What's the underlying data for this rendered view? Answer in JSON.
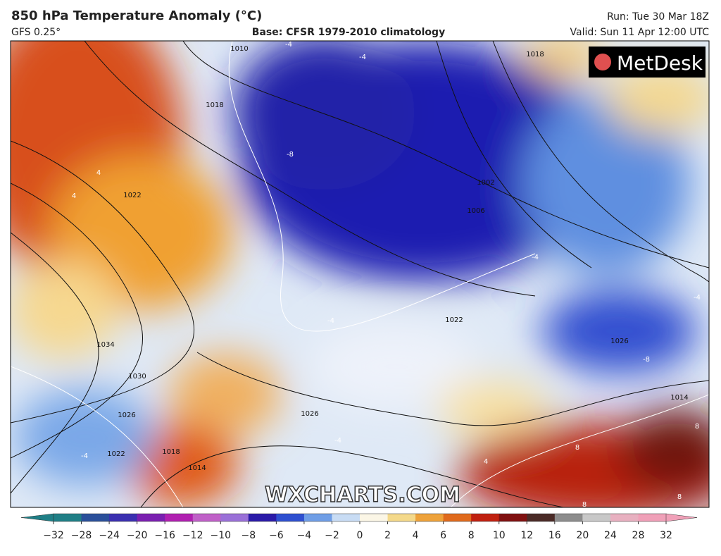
{
  "header": {
    "title": "850 hPa Temperature Anomaly (°C)",
    "model": "GFS 0.25°",
    "base": "Base: CFSR 1979-2010 climatology",
    "run": "Run: Tue 30 Mar 18Z",
    "valid": "Valid: Sun 11 Apr 12:00 UTC"
  },
  "logo": "MetDesk",
  "watermark": "WXCHARTS.COM",
  "map": {
    "isobar_labels": [
      "1010",
      "1018",
      "1022",
      "1034",
      "1030",
      "1026",
      "1022",
      "1018",
      "1014",
      "1026",
      "1006",
      "1002",
      "1022",
      "1026",
      "1014",
      "1018"
    ],
    "anomaly_labels": [
      "-4",
      "-4",
      "-8",
      "-4",
      "4",
      "4",
      "-4",
      "-4",
      "-4",
      "4",
      "8",
      "8",
      "8",
      "-8",
      "8",
      "-4"
    ]
  },
  "colorbar": {
    "ticks": [
      {
        "value": -32,
        "label": "−32"
      },
      {
        "value": -28,
        "label": "−28"
      },
      {
        "value": -24,
        "label": "−24"
      },
      {
        "value": -20,
        "label": "−20"
      },
      {
        "value": -16,
        "label": "−16"
      },
      {
        "value": -12,
        "label": "−12"
      },
      {
        "value": -10,
        "label": "−10"
      },
      {
        "value": -8,
        "label": "−8"
      },
      {
        "value": -6,
        "label": "−6"
      },
      {
        "value": -4,
        "label": "−4"
      },
      {
        "value": -2,
        "label": "−2"
      },
      0,
      2,
      4,
      6,
      8,
      10,
      12,
      16,
      20,
      24,
      28,
      32
    ],
    "colors": [
      "#1f7f86",
      "#2a4f9a",
      "#3a2fb0",
      "#7a1fb0",
      "#b01fb0",
      "#c060c8",
      "#9a70d8",
      "#2a1aa8",
      "#2e4fd0",
      "#6f9ee6",
      "#c8dcf4",
      "#fbf6e6",
      "#f4d98a",
      "#eea23a",
      "#e06a1c",
      "#c0200f",
      "#801010",
      "#4a2a26",
      "#8c8c8c",
      "#c8c8c8",
      "#e8b0c0",
      "#f0a0b8"
    ]
  }
}
